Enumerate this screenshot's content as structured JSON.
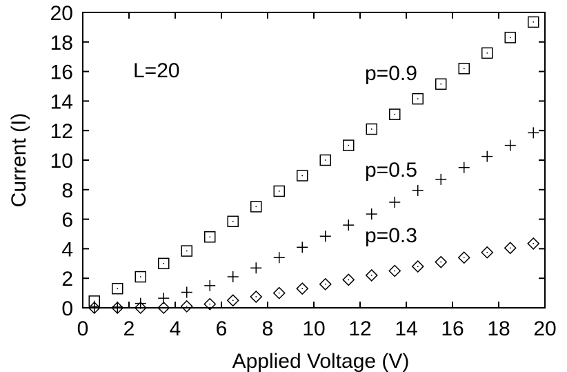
{
  "chart_data": {
    "type": "scatter",
    "title": "",
    "xlabel": "Applied Voltage (V)",
    "ylabel": "Current (I)",
    "xlim": [
      0,
      20
    ],
    "ylim": [
      0,
      20
    ],
    "x_ticks": [
      "0",
      "2",
      "4",
      "6",
      "8",
      "10",
      "12",
      "14",
      "16",
      "18",
      "20"
    ],
    "y_ticks": [
      "0",
      "2",
      "4",
      "6",
      "8",
      "10",
      "12",
      "14",
      "16",
      "18",
      "20"
    ],
    "grid": false,
    "annotations": [
      "L=20",
      "p=0.9",
      "p=0.5",
      "p=0.3"
    ],
    "x": [
      0.5,
      1.5,
      2.5,
      3.5,
      4.5,
      5.5,
      6.5,
      7.5,
      8.5,
      9.5,
      10.5,
      11.5,
      12.5,
      13.5,
      14.5,
      15.5,
      16.5,
      17.5,
      18.5,
      19.5
    ],
    "series": [
      {
        "marker": "square",
        "values": [
          0.45,
          1.3,
          2.1,
          3.0,
          3.85,
          4.8,
          5.85,
          6.85,
          7.9,
          8.95,
          10.0,
          11.0,
          12.1,
          13.1,
          14.15,
          15.15,
          16.2,
          17.25,
          18.3,
          19.35
        ]
      },
      {
        "marker": "plus",
        "values": [
          0.0,
          0.05,
          0.3,
          0.65,
          1.05,
          1.5,
          2.1,
          2.7,
          3.4,
          4.1,
          4.85,
          5.6,
          6.35,
          7.15,
          7.95,
          8.7,
          9.5,
          10.25,
          11.0,
          11.85
        ]
      },
      {
        "marker": "diamond",
        "values": [
          0.0,
          0.0,
          0.0,
          0.0,
          0.1,
          0.25,
          0.5,
          0.75,
          1.0,
          1.3,
          1.6,
          1.9,
          2.2,
          2.5,
          2.8,
          3.1,
          3.4,
          3.75,
          4.05,
          4.35
        ]
      }
    ]
  }
}
